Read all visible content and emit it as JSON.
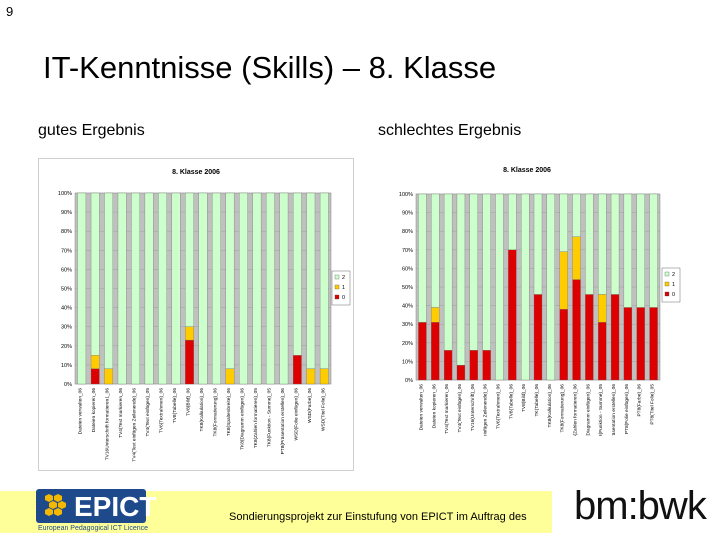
{
  "slide": {
    "number": "9",
    "title": "IT-Kenntnisse (Skills) – 8. Klasse",
    "label_left": "gutes Ergebnis",
    "label_right": "schlechtes Ergebnis"
  },
  "footer": {
    "text": "Sondierungsprojekt zur Einstufung von EPICT im Auftrag des",
    "logo_left": "EPICT",
    "logo_left_sub": "European Pedagogical ICT Licence",
    "logo_right": "bm:bwk"
  },
  "colors": {
    "green": "#ccffcc",
    "yellow": "#ffcc00",
    "red": "#dd0000",
    "plot_bg": "#c0c0c0",
    "footer_bg": "#ffff99",
    "logo_blue": "#1e4a8c"
  },
  "chart_data": [
    {
      "type": "bar",
      "stacked": true,
      "title": "8. Klasse 2006",
      "yticks": [
        "0%",
        "10%",
        "20%",
        "30%",
        "40%",
        "50%",
        "60%",
        "70%",
        "80%",
        "90%",
        "100%"
      ],
      "ylim": [
        0,
        100
      ],
      "legend": [
        "2",
        "1",
        "0"
      ],
      "legend_position": "right",
      "categories": [
        "Dateien verwalten_06",
        "Dateien kopieren_06",
        "TV16Unterschrift formatieren1_06",
        "TV4(Text markieren_06",
        "TV4(Text einfügen Zeilenende)_06",
        "TV4(Text einfügen)_05",
        "TV6(Textrahmen)_06",
        "TV8(Tabelle)_06",
        "TV8(Bild)_06",
        "TK8(Kalkulation)_06",
        "TK8(Formatierung)_06",
        "TK8(Spaltenbreite)_06",
        "TK8(Diagramm einfügen)_06",
        "TK8(Zahlen formatieren)_05",
        "TK8(Funktion - Summe)_05",
        "PT8(Präsentation erstellen)_06",
        "WSD(Folie einfügen)_06",
        "WSD(Farbe)_06",
        "WSD(Titel Folie)_06"
      ],
      "series": [
        {
          "name": "0",
          "values": [
            0,
            8,
            0,
            0,
            0,
            0,
            0,
            0,
            23,
            0,
            0,
            0,
            0,
            0,
            0,
            0,
            15,
            0,
            0
          ]
        },
        {
          "name": "1",
          "values": [
            0,
            7,
            8,
            0,
            0,
            0,
            0,
            0,
            7,
            0,
            0,
            8,
            0,
            0,
            0,
            0,
            0,
            8,
            8
          ]
        },
        {
          "name": "2",
          "values": [
            100,
            85,
            92,
            100,
            100,
            100,
            100,
            100,
            70,
            100,
            100,
            92,
            100,
            100,
            100,
            100,
            85,
            92,
            92
          ]
        }
      ]
    },
    {
      "type": "bar",
      "stacked": true,
      "title": "8. Klasse 2006",
      "yticks": [
        "0%",
        "10%",
        "20%",
        "30%",
        "40%",
        "50%",
        "60%",
        "70%",
        "80%",
        "90%",
        "100%"
      ],
      "ylim": [
        0,
        100
      ],
      "legend": [
        "2",
        "1",
        "0"
      ],
      "legend_position": "right",
      "categories": [
        "Dateien verwalten_06",
        "Dateien kopieren_06",
        "TV4(Text markieren_06",
        "TV4(Text einfügen)_06",
        "TV16(Unterschrift)_06",
        "TV4(Text einfügen Zeilenende)_06",
        "TV6(Textrahmen)_06",
        "TV8(Tabelle)_06",
        "TV8(Bild)_06",
        "TK(Tabelle)_06",
        "TK8(Kalkulation)_06",
        "TK8(Formatierung)_06",
        "TK8(Zahlen formatieren)_06",
        "TK8(Diagramm einfügen)_06",
        "TK8(Funktion - Summe)_05",
        "PT8(Präsentation erstellen)_06",
        "PT8(Folie einfügen)_06",
        "PT8(Farbe)_06",
        "PT8(Titel Folie)_05"
      ],
      "series": [
        {
          "name": "0",
          "values": [
            31,
            31,
            16,
            8,
            16,
            16,
            0,
            70,
            0,
            46,
            0,
            38,
            54,
            46,
            31,
            46,
            39,
            39,
            39
          ]
        },
        {
          "name": "1",
          "values": [
            0,
            8,
            0,
            0,
            0,
            0,
            0,
            0,
            0,
            0,
            0,
            31,
            23,
            0,
            15,
            0,
            0,
            0,
            0
          ]
        },
        {
          "name": "2",
          "values": [
            69,
            61,
            84,
            92,
            84,
            84,
            100,
            30,
            100,
            54,
            100,
            31,
            23,
            54,
            54,
            54,
            61,
            61,
            61
          ]
        }
      ]
    }
  ]
}
